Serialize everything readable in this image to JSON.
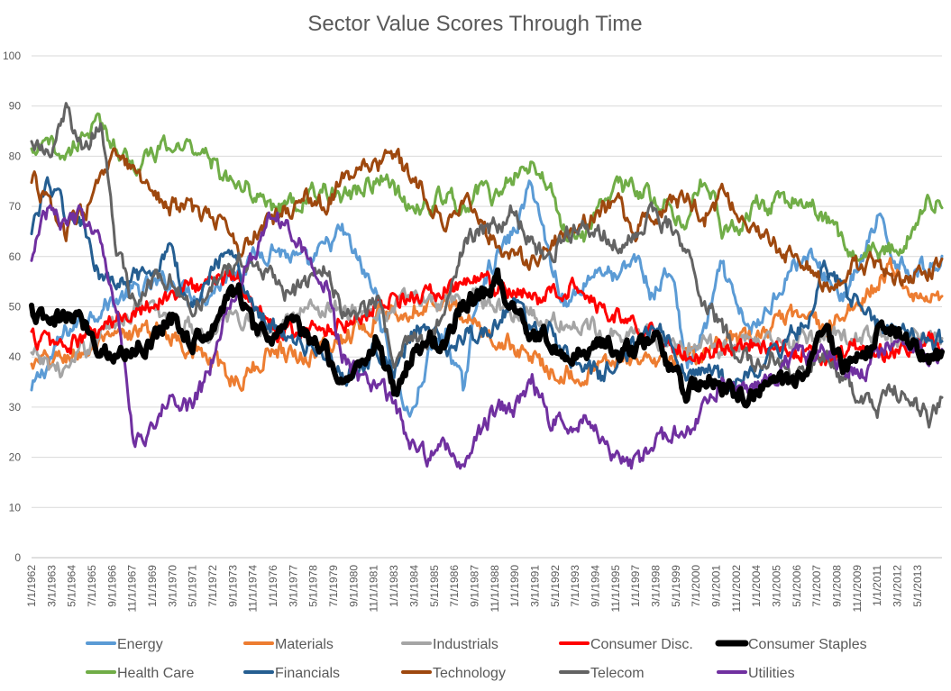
{
  "chart_data": {
    "type": "line",
    "title": "Sector Value Scores Through Time",
    "xlabel": "",
    "ylabel": "",
    "ylim": [
      0,
      100
    ],
    "yticks": [
      0,
      10,
      20,
      30,
      40,
      50,
      60,
      70,
      80,
      90,
      100
    ],
    "grid": true,
    "legend_position": "bottom",
    "x_start_year": 1962,
    "x_end_year": 2014.75,
    "xtick_labels": [
      "1/1/1962",
      "3/1/1963",
      "5/1/1964",
      "7/1/1965",
      "9/1/1966",
      "11/1/1967",
      "1/1/1969",
      "3/1/1970",
      "5/1/1971",
      "7/1/1972",
      "9/1/1973",
      "11/1/1974",
      "1/1/1976",
      "3/1/1977",
      "5/1/1978",
      "7/1/1979",
      "9/1/1980",
      "11/1/1981",
      "1/1/1983",
      "3/1/1984",
      "5/1/1985",
      "7/1/1986",
      "9/1/1987",
      "11/1/1988",
      "1/1/1990",
      "3/1/1991",
      "5/1/1992",
      "7/1/1993",
      "9/1/1994",
      "11/1/1995",
      "1/1/1997",
      "3/1/1998",
      "5/1/1999",
      "7/1/2000",
      "9/1/2001",
      "11/1/2002",
      "1/1/2004",
      "3/1/2005",
      "5/1/2006",
      "7/1/2007",
      "9/1/2008",
      "11/1/2009",
      "1/1/2011",
      "3/1/2012",
      "5/1/2013"
    ],
    "series": [
      {
        "name": "Energy",
        "color": "#5B9BD5",
        "width": 3,
        "x": [
          1962,
          1964,
          1966,
          1968,
          1970,
          1972,
          1974,
          1976,
          1978,
          1980,
          1982,
          1983,
          1984,
          1985,
          1986,
          1987,
          1988,
          1989,
          1990,
          1991,
          1992,
          1993,
          1994,
          1995,
          1996,
          1997,
          1998,
          1999,
          2000,
          2001,
          2002,
          2003,
          2004,
          2005,
          2006,
          2007,
          2008,
          2009,
          2010,
          2011,
          2012,
          2013,
          2014,
          2014.75
        ],
        "y": [
          33,
          45,
          50,
          53,
          55,
          52,
          58,
          62,
          58,
          65,
          52,
          35,
          28,
          40,
          45,
          33,
          55,
          60,
          65,
          75,
          60,
          50,
          55,
          58,
          55,
          60,
          52,
          58,
          38,
          45,
          58,
          48,
          45,
          52,
          58,
          60,
          56,
          52,
          58,
          67,
          60,
          57,
          58,
          59
        ]
      },
      {
        "name": "Materials",
        "color": "#ED7D31",
        "width": 3,
        "x": [
          1962,
          1964,
          1966,
          1968,
          1970,
          1972,
          1974,
          1975,
          1976,
          1978,
          1980,
          1982,
          1984,
          1986,
          1988,
          1990,
          1992,
          1994,
          1996,
          1998,
          2000,
          2002,
          2004,
          2006,
          2008,
          2010,
          2011,
          2012,
          2013,
          2014,
          2014.75
        ],
        "y": [
          38,
          40,
          42,
          45,
          45,
          40,
          35,
          38,
          42,
          40,
          44,
          48,
          50,
          52,
          45,
          42,
          38,
          36,
          40,
          38,
          40,
          42,
          44,
          48,
          46,
          50,
          55,
          58,
          53,
          51,
          53
        ]
      },
      {
        "name": "Industrials",
        "color": "#A5A5A5",
        "width": 3,
        "x": [
          1962,
          1964,
          1966,
          1968,
          1970,
          1972,
          1974,
          1976,
          1978,
          1980,
          1982,
          1984,
          1986,
          1988,
          1990,
          1992,
          1994,
          1996,
          1998,
          2000,
          2002,
          2004,
          2006,
          2008,
          2010,
          2012,
          2014,
          2014.75
        ],
        "y": [
          40,
          37,
          45,
          50,
          48,
          45,
          48,
          45,
          50,
          50,
          48,
          52,
          50,
          52,
          49,
          47,
          46,
          45,
          44,
          42,
          42,
          44,
          42,
          45,
          44,
          43,
          44,
          43
        ]
      },
      {
        "name": "Consumer Disc.",
        "color": "#FF0000",
        "width": 3,
        "x": [
          1962,
          1964,
          1966,
          1968,
          1970,
          1972,
          1974,
          1976,
          1978,
          1980,
          1982,
          1984,
          1986,
          1988,
          1990,
          1992,
          1994,
          1995,
          1996,
          1998,
          2000,
          2002,
          2004,
          2006,
          2008,
          2010,
          2012,
          2014,
          2014.75
        ],
        "y": [
          44,
          42,
          45,
          50,
          52,
          55,
          56,
          45,
          45,
          47,
          50,
          52,
          53,
          55,
          52,
          52,
          55,
          50,
          48,
          45,
          40,
          42,
          43,
          42,
          40,
          42,
          41,
          43,
          42
        ]
      },
      {
        "name": "Consumer Staples",
        "color": "#000000",
        "width": 6,
        "x": [
          1962,
          1963,
          1964,
          1965,
          1966,
          1967,
          1968,
          1969,
          1970,
          1971,
          1972,
          1973,
          1974,
          1975,
          1976,
          1977,
          1978,
          1979,
          1980,
          1981,
          1982,
          1983,
          1984,
          1985,
          1986,
          1987,
          1988,
          1989,
          1990,
          1991,
          1992,
          1993,
          1994,
          1995,
          1996,
          1997,
          1998,
          1999,
          2000,
          2001,
          2002,
          2003,
          2004,
          2005,
          2006,
          2007,
          2008,
          2009,
          2010,
          2011,
          2012,
          2013,
          2014,
          2014.75
        ],
        "y": [
          49,
          46,
          48,
          47,
          42,
          40,
          42,
          43,
          49,
          44,
          43,
          50,
          54,
          44,
          44,
          48,
          43,
          42,
          35,
          38,
          44,
          33,
          40,
          44,
          42,
          51,
          52,
          55,
          50,
          45,
          44,
          40,
          41,
          43,
          42,
          41,
          44,
          38,
          32,
          36,
          34,
          33,
          32,
          37,
          34,
          38,
          46,
          37,
          40,
          44,
          45,
          44,
          40,
          41
        ]
      },
      {
        "name": "Health Care",
        "color": "#70AD47",
        "width": 3,
        "x": [
          1962,
          1963,
          1964,
          1965,
          1966,
          1967,
          1968,
          1969,
          1970,
          1971,
          1972,
          1973,
          1974,
          1975,
          1976,
          1977,
          1978,
          1979,
          1980,
          1981,
          1982,
          1983,
          1984,
          1985,
          1986,
          1987,
          1988,
          1989,
          1990,
          1991,
          1992,
          1993,
          1994,
          1995,
          1996,
          1997,
          1998,
          1999,
          2000,
          2001,
          2002,
          2003,
          2004,
          2005,
          2006,
          2007,
          2008,
          2009,
          2010,
          2011,
          2012,
          2013,
          2014,
          2014.75
        ],
        "y": [
          80,
          82,
          80,
          85,
          86,
          82,
          78,
          80,
          82,
          82,
          82,
          76,
          76,
          72,
          70,
          70,
          72,
          73,
          72,
          73,
          76,
          73,
          70,
          70,
          72,
          70,
          73,
          72,
          76,
          78,
          74,
          65,
          64,
          70,
          74,
          73,
          72,
          70,
          68,
          76,
          66,
          65,
          70,
          70,
          71,
          70,
          68,
          62,
          60,
          60,
          62,
          65,
          71,
          72
        ]
      },
      {
        "name": "Financials",
        "color": "#255E91",
        "width": 3,
        "x": [
          1962,
          1963,
          1964,
          1965,
          1966,
          1967,
          1968,
          1969,
          1970,
          1971,
          1972,
          1973,
          1974,
          1975,
          1976,
          1977,
          1978,
          1979,
          1980,
          1981,
          1982,
          1983,
          1984,
          1985,
          1986,
          1987,
          1988,
          1989,
          1990,
          1991,
          1992,
          1993,
          1994,
          1995,
          1996,
          1997,
          1998,
          1999,
          2000,
          2001,
          2002,
          2003,
          2004,
          2005,
          2006,
          2007,
          2008,
          2009,
          2010,
          2011,
          2012,
          2013,
          2014,
          2014.75
        ],
        "y": [
          66,
          75,
          68,
          66,
          55,
          54,
          56,
          54,
          64,
          50,
          55,
          60,
          58,
          50,
          46,
          44,
          42,
          40,
          36,
          38,
          42,
          38,
          44,
          48,
          40,
          45,
          44,
          48,
          50,
          46,
          45,
          40,
          38,
          36,
          40,
          42,
          46,
          44,
          35,
          38,
          35,
          34,
          38,
          40,
          45,
          47,
          58,
          53,
          50,
          46,
          45,
          44,
          42,
          43
        ]
      },
      {
        "name": "Technology",
        "color": "#9E480E",
        "width": 3,
        "x": [
          1962,
          1963,
          1964,
          1965,
          1966,
          1967,
          1968,
          1969,
          1970,
          1971,
          1972,
          1973,
          1974,
          1975,
          1976,
          1977,
          1978,
          1979,
          1980,
          1981,
          1982,
          1983,
          1984,
          1985,
          1986,
          1987,
          1988,
          1989,
          1990,
          1991,
          1992,
          1993,
          1994,
          1995,
          1996,
          1997,
          1998,
          1999,
          2000,
          2001,
          2002,
          2003,
          2004,
          2005,
          2006,
          2007,
          2008,
          2009,
          2010,
          2011,
          2012,
          2013,
          2014,
          2014.75
        ],
        "y": [
          76,
          70,
          65,
          68,
          75,
          80,
          76,
          74,
          70,
          70,
          68,
          67,
          62,
          65,
          67,
          70,
          72,
          70,
          75,
          77,
          78,
          80,
          76,
          72,
          68,
          72,
          66,
          62,
          60,
          60,
          62,
          65,
          67,
          70,
          70,
          66,
          68,
          70,
          72,
          68,
          72,
          70,
          64,
          62,
          60,
          58,
          54,
          57,
          58,
          59,
          55,
          55,
          58,
          57
        ]
      },
      {
        "name": "Telecom",
        "color": "#636363",
        "width": 3,
        "x": [
          1962,
          1963,
          1964,
          1965,
          1966,
          1967,
          1968,
          1969,
          1970,
          1971,
          1972,
          1973,
          1974,
          1975,
          1976,
          1977,
          1978,
          1979,
          1980,
          1981,
          1982,
          1983,
          1984,
          1985,
          1986,
          1987,
          1988,
          1989,
          1990,
          1991,
          1992,
          1993,
          1994,
          1995,
          1996,
          1997,
          1998,
          1999,
          2000,
          2001,
          2002,
          2003,
          2004,
          2005,
          2006,
          2007,
          2008,
          2009,
          2010,
          2011,
          2012,
          2013,
          2014,
          2014.75
        ],
        "y": [
          84,
          79,
          89,
          80,
          87,
          60,
          50,
          55,
          56,
          50,
          52,
          56,
          60,
          58,
          56,
          52,
          55,
          58,
          50,
          48,
          52,
          40,
          44,
          42,
          50,
          62,
          65,
          66,
          70,
          62,
          60,
          65,
          66,
          65,
          62,
          66,
          68,
          66,
          60,
          50,
          46,
          40,
          38,
          40,
          36,
          38,
          40,
          35,
          32,
          30,
          33,
          32,
          28,
          32
        ]
      },
      {
        "name": "Utilities",
        "color": "#7030A0",
        "width": 3,
        "x": [
          1962,
          1963,
          1964,
          1965,
          1966,
          1967,
          1968,
          1969,
          1970,
          1971,
          1972,
          1973,
          1974,
          1975,
          1976,
          1977,
          1978,
          1979,
          1980,
          1981,
          1982,
          1983,
          1984,
          1985,
          1986,
          1987,
          1988,
          1989,
          1990,
          1991,
          1992,
          1993,
          1994,
          1995,
          1996,
          1997,
          1998,
          1999,
          2000,
          2001,
          2002,
          2003,
          2004,
          2005,
          2006,
          2007,
          2008,
          2009,
          2010,
          2011,
          2012,
          2013,
          2014,
          2014.75
        ],
        "y": [
          60,
          70,
          66,
          68,
          62,
          50,
          22,
          26,
          32,
          30,
          34,
          45,
          55,
          62,
          68,
          66,
          60,
          55,
          40,
          36,
          35,
          30,
          22,
          20,
          22,
          19,
          25,
          30,
          30,
          35,
          28,
          26,
          28,
          24,
          20,
          18,
          22,
          25,
          25,
          30,
          35,
          33,
          35,
          36,
          40,
          40,
          42,
          38,
          36,
          40,
          44,
          42,
          40,
          40
        ]
      }
    ]
  }
}
